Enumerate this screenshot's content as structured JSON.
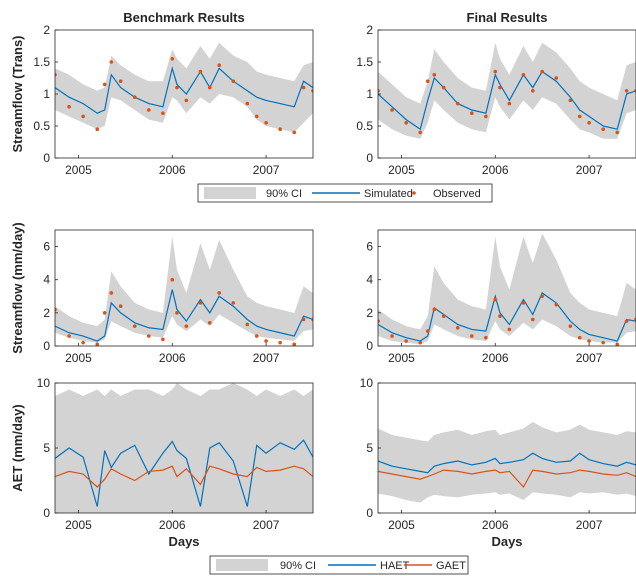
{
  "chart_data": [
    {
      "type": "line",
      "title": "Benchmark Results",
      "xlabel": "",
      "ylabel": "Streamflow (Trans)",
      "ylim": [
        0,
        2
      ],
      "yticks": [
        0,
        0.5,
        1,
        1.5,
        2
      ],
      "ytick_labels": [
        "0",
        "0.5",
        "1",
        "1.5",
        "2"
      ],
      "xlim": [
        2004.75,
        2007.5
      ],
      "xticks": [
        2005,
        2006,
        2007
      ],
      "xtick_labels": [
        "2005",
        "2006",
        "2007"
      ],
      "x": [
        2004.75,
        2004.9,
        2005.05,
        2005.2,
        2005.28,
        2005.35,
        2005.45,
        2005.6,
        2005.75,
        2005.9,
        2006.0,
        2006.05,
        2006.15,
        2006.3,
        2006.4,
        2006.5,
        2006.65,
        2006.8,
        2006.9,
        2007.0,
        2007.15,
        2007.3,
        2007.4,
        2007.5
      ],
      "series": [
        {
          "name": "90% CI",
          "lower": [
            0.75,
            0.65,
            0.55,
            0.45,
            0.5,
            0.95,
            0.9,
            0.75,
            0.6,
            0.55,
            0.95,
            0.9,
            0.7,
            0.95,
            0.85,
            1.0,
            0.95,
            0.8,
            0.6,
            0.5,
            0.45,
            0.4,
            0.55,
            0.7
          ],
          "upper": [
            1.4,
            1.3,
            1.15,
            1.05,
            1.1,
            1.6,
            1.45,
            1.3,
            1.2,
            1.2,
            1.7,
            1.55,
            1.4,
            1.75,
            1.55,
            1.8,
            1.6,
            1.5,
            1.35,
            1.3,
            1.25,
            1.2,
            1.45,
            1.5
          ]
        },
        {
          "name": "Simulated",
          "values": [
            1.1,
            0.95,
            0.85,
            0.7,
            0.75,
            1.3,
            1.1,
            0.95,
            0.85,
            0.8,
            1.4,
            1.15,
            1.0,
            1.35,
            1.1,
            1.4,
            1.2,
            1.05,
            0.95,
            0.9,
            0.85,
            0.8,
            1.2,
            1.1
          ]
        },
        {
          "name": "Observed",
          "values": [
            1.3,
            0.8,
            0.65,
            0.45,
            1.15,
            1.5,
            1.2,
            0.95,
            0.75,
            0.7,
            1.55,
            1.1,
            0.9,
            1.35,
            1.1,
            1.45,
            1.2,
            0.85,
            0.65,
            0.55,
            0.45,
            0.4,
            1.1,
            1.05
          ]
        }
      ]
    },
    {
      "type": "line",
      "title": "Final Results",
      "xlabel": "",
      "ylabel": "",
      "ylim": [
        0,
        2
      ],
      "yticks": [
        0,
        0.5,
        1,
        1.5,
        2
      ],
      "ytick_labels": [
        "0",
        "0.5",
        "1",
        "1.5",
        "2"
      ],
      "xlim": [
        2004.75,
        2007.5
      ],
      "xticks": [
        2005,
        2006,
        2007
      ],
      "xtick_labels": [
        "2005",
        "2006",
        "2007"
      ],
      "x": [
        2004.75,
        2004.9,
        2005.05,
        2005.2,
        2005.28,
        2005.35,
        2005.45,
        2005.6,
        2005.75,
        2005.9,
        2006.0,
        2006.05,
        2006.15,
        2006.3,
        2006.4,
        2006.5,
        2006.65,
        2006.8,
        2006.9,
        2007.0,
        2007.15,
        2007.3,
        2007.4,
        2007.5
      ],
      "series": [
        {
          "name": "90% CI",
          "lower": [
            0.6,
            0.45,
            0.35,
            0.3,
            0.55,
            0.9,
            0.75,
            0.55,
            0.45,
            0.4,
            0.95,
            0.8,
            0.6,
            0.9,
            0.75,
            0.95,
            0.85,
            0.6,
            0.45,
            0.4,
            0.3,
            0.3,
            0.7,
            0.75
          ],
          "upper": [
            1.35,
            1.15,
            0.95,
            0.85,
            1.2,
            1.7,
            1.5,
            1.25,
            1.1,
            1.05,
            1.8,
            1.55,
            1.3,
            1.75,
            1.5,
            1.8,
            1.65,
            1.4,
            1.2,
            1.1,
            1.0,
            0.9,
            1.45,
            1.5
          ]
        },
        {
          "name": "Simulated",
          "values": [
            1.0,
            0.8,
            0.6,
            0.45,
            0.9,
            1.25,
            1.1,
            0.85,
            0.75,
            0.7,
            1.3,
            1.15,
            0.9,
            1.3,
            1.1,
            1.35,
            1.2,
            0.95,
            0.75,
            0.65,
            0.5,
            0.45,
            1.0,
            1.05
          ]
        },
        {
          "name": "Observed",
          "values": [
            1.05,
            0.75,
            0.55,
            0.4,
            1.2,
            1.3,
            1.1,
            0.85,
            0.7,
            0.65,
            1.35,
            1.1,
            0.85,
            1.3,
            1.05,
            1.35,
            1.25,
            0.9,
            0.65,
            0.55,
            0.45,
            0.4,
            1.05,
            1.05
          ]
        }
      ]
    },
    {
      "type": "line",
      "title": "",
      "xlabel": "",
      "ylabel": "Streamflow (mm/day)",
      "ylim": [
        0,
        7
      ],
      "yticks": [
        0,
        2,
        4,
        6
      ],
      "ytick_labels": [
        "0",
        "2",
        "4",
        "6"
      ],
      "xlim": [
        2004.75,
        2007.5
      ],
      "xticks": [
        2005,
        2006,
        2007
      ],
      "xtick_labels": [
        "2005",
        "2006",
        "2007"
      ],
      "x": [
        2004.75,
        2004.9,
        2005.05,
        2005.2,
        2005.28,
        2005.35,
        2005.45,
        2005.6,
        2005.75,
        2005.9,
        2006.0,
        2006.05,
        2006.15,
        2006.3,
        2006.4,
        2006.5,
        2006.65,
        2006.8,
        2006.9,
        2007.0,
        2007.15,
        2007.3,
        2007.4,
        2007.5
      ],
      "series": [
        {
          "name": "90% CI",
          "lower": [
            0.8,
            0.5,
            0.3,
            0.2,
            0.4,
            1.5,
            1.2,
            0.8,
            0.6,
            0.5,
            1.8,
            1.3,
            0.9,
            1.6,
            1.2,
            1.9,
            1.4,
            0.9,
            0.6,
            0.5,
            0.4,
            0.3,
            0.9,
            1.0
          ],
          "upper": [
            2.4,
            1.8,
            1.4,
            1.2,
            1.6,
            4.5,
            3.6,
            2.6,
            2.2,
            2.0,
            6.6,
            4.6,
            3.2,
            6.2,
            4.6,
            6.4,
            4.6,
            3.0,
            2.6,
            2.4,
            2.2,
            2.0,
            3.6,
            3.2
          ]
        },
        {
          "name": "Simulated",
          "values": [
            1.2,
            0.8,
            0.6,
            0.3,
            0.6,
            2.6,
            2.0,
            1.4,
            1.1,
            1.0,
            3.4,
            2.2,
            1.5,
            2.8,
            2.0,
            3.0,
            2.4,
            1.6,
            1.2,
            1.0,
            0.8,
            0.6,
            1.8,
            1.6
          ]
        },
        {
          "name": "Observed",
          "values": [
            2.2,
            0.6,
            0.2,
            0.1,
            2.0,
            3.2,
            2.4,
            1.2,
            0.6,
            0.4,
            4.0,
            2.0,
            1.2,
            2.6,
            1.4,
            3.2,
            2.6,
            1.3,
            0.6,
            0.3,
            0.2,
            0.1,
            1.6,
            1.6
          ]
        }
      ]
    },
    {
      "type": "line",
      "title": "",
      "xlabel": "",
      "ylabel": "",
      "ylim": [
        0,
        7
      ],
      "yticks": [
        0,
        2,
        4,
        6
      ],
      "ytick_labels": [
        "0",
        "2",
        "4",
        "6"
      ],
      "xlim": [
        2004.75,
        2007.5
      ],
      "xticks": [
        2005,
        2006,
        2007
      ],
      "xtick_labels": [
        "2005",
        "2006",
        "2007"
      ],
      "x": [
        2004.75,
        2004.9,
        2005.05,
        2005.2,
        2005.28,
        2005.35,
        2005.45,
        2005.6,
        2005.75,
        2005.9,
        2006.0,
        2006.05,
        2006.15,
        2006.3,
        2006.4,
        2006.5,
        2006.65,
        2006.8,
        2006.9,
        2007.0,
        2007.15,
        2007.3,
        2007.4,
        2007.5
      ],
      "series": [
        {
          "name": "90% CI",
          "lower": [
            0.6,
            0.3,
            0.2,
            0.1,
            0.3,
            1.3,
            1.0,
            0.6,
            0.4,
            0.3,
            1.5,
            1.0,
            0.6,
            1.4,
            1.0,
            1.6,
            1.2,
            0.6,
            0.4,
            0.3,
            0.2,
            0.2,
            0.8,
            0.9
          ],
          "upper": [
            2.2,
            1.6,
            1.2,
            1.0,
            1.8,
            4.8,
            3.8,
            2.8,
            2.4,
            2.2,
            6.6,
            4.8,
            3.4,
            6.6,
            5.0,
            6.8,
            5.2,
            3.2,
            2.6,
            2.2,
            2.0,
            1.8,
            3.8,
            3.4
          ]
        },
        {
          "name": "Simulated",
          "values": [
            1.3,
            0.8,
            0.5,
            0.3,
            0.6,
            2.3,
            1.9,
            1.3,
            1.0,
            0.9,
            3.0,
            2.0,
            1.3,
            2.8,
            1.9,
            3.2,
            2.6,
            1.5,
            1.0,
            0.7,
            0.5,
            0.3,
            1.6,
            1.5
          ]
        },
        {
          "name": "Observed",
          "values": [
            1.5,
            0.6,
            0.3,
            0.2,
            0.9,
            2.2,
            1.8,
            1.1,
            0.6,
            0.5,
            2.8,
            1.8,
            1.0,
            2.6,
            1.6,
            3.0,
            2.5,
            1.2,
            0.5,
            0.3,
            0.2,
            0.1,
            1.5,
            1.6
          ]
        }
      ]
    },
    {
      "type": "line",
      "title": "",
      "xlabel": "Days",
      "ylabel": "AET (mm/day)",
      "ylim": [
        0,
        10
      ],
      "yticks": [
        0,
        5,
        10
      ],
      "ytick_labels": [
        "0",
        "5",
        "10"
      ],
      "xlim": [
        2004.75,
        2007.5
      ],
      "xticks": [
        2005,
        2006,
        2007
      ],
      "xtick_labels": [
        "2005",
        "2006",
        "2007"
      ],
      "x": [
        2004.75,
        2004.9,
        2005.05,
        2005.2,
        2005.28,
        2005.35,
        2005.45,
        2005.6,
        2005.75,
        2005.9,
        2006.0,
        2006.05,
        2006.15,
        2006.3,
        2006.4,
        2006.5,
        2006.65,
        2006.8,
        2006.9,
        2007.0,
        2007.15,
        2007.3,
        2007.4,
        2007.5
      ],
      "series": [
        {
          "name": "90% CI",
          "lower": [
            0,
            0,
            0,
            0,
            0,
            0,
            0,
            0,
            0,
            0,
            0,
            0,
            0,
            0,
            0,
            0,
            0,
            0,
            0,
            0,
            0,
            0,
            0,
            0
          ],
          "upper": [
            9.0,
            9.5,
            9.0,
            9.5,
            9.0,
            9.5,
            9.0,
            9.5,
            9.5,
            9.0,
            9.5,
            10.0,
            9.5,
            9.0,
            9.5,
            9.5,
            10.0,
            9.5,
            9.0,
            9.5,
            9.0,
            9.5,
            9.0,
            9.5
          ]
        },
        {
          "name": "HAET",
          "values": [
            4.2,
            5.0,
            4.3,
            0.5,
            4.8,
            3.5,
            4.6,
            5.2,
            3.0,
            4.6,
            5.5,
            4.8,
            4.2,
            0.5,
            5.0,
            5.4,
            4.0,
            0.5,
            5.2,
            4.6,
            5.4,
            4.9,
            5.6,
            4.3
          ]
        },
        {
          "name": "GAET",
          "values": [
            2.8,
            3.2,
            3.0,
            2.0,
            2.6,
            3.4,
            3.0,
            2.5,
            3.2,
            3.3,
            3.6,
            2.8,
            3.4,
            2.2,
            3.6,
            3.4,
            3.0,
            2.8,
            3.5,
            3.2,
            3.3,
            3.6,
            3.4,
            2.8
          ]
        }
      ]
    },
    {
      "type": "line",
      "title": "",
      "xlabel": "Days",
      "ylabel": "",
      "ylim": [
        0,
        10
      ],
      "yticks": [
        0,
        5,
        10
      ],
      "ytick_labels": [
        "0",
        "5",
        "10"
      ],
      "xlim": [
        2004.75,
        2007.5
      ],
      "xticks": [
        2005,
        2006,
        2007
      ],
      "xtick_labels": [
        "2005",
        "2006",
        "2007"
      ],
      "x": [
        2004.75,
        2004.9,
        2005.05,
        2005.2,
        2005.28,
        2005.35,
        2005.45,
        2005.6,
        2005.75,
        2005.9,
        2006.0,
        2006.05,
        2006.15,
        2006.3,
        2006.4,
        2006.5,
        2006.65,
        2006.8,
        2006.9,
        2007.0,
        2007.15,
        2007.3,
        2007.4,
        2007.5
      ],
      "series": [
        {
          "name": "90% CI",
          "lower": [
            1.5,
            1.3,
            1.0,
            0.8,
            1.2,
            1.4,
            1.3,
            1.2,
            1.4,
            1.5,
            1.6,
            1.4,
            1.5,
            1.0,
            1.6,
            1.5,
            1.4,
            1.2,
            1.6,
            1.5,
            1.6,
            1.4,
            1.5,
            1.3
          ],
          "upper": [
            6.5,
            6.0,
            5.8,
            5.6,
            5.5,
            6.0,
            6.2,
            6.4,
            6.0,
            6.3,
            6.4,
            6.0,
            6.2,
            6.5,
            7.0,
            6.6,
            6.2,
            6.4,
            6.8,
            6.4,
            6.2,
            6.0,
            6.3,
            6.2
          ]
        },
        {
          "name": "HAET",
          "values": [
            4.0,
            3.6,
            3.4,
            3.2,
            3.1,
            3.6,
            3.8,
            4.0,
            3.7,
            3.9,
            4.2,
            3.8,
            3.9,
            4.1,
            4.6,
            4.2,
            3.9,
            4.0,
            4.6,
            4.1,
            3.8,
            3.6,
            3.9,
            3.7
          ]
        },
        {
          "name": "GAET",
          "values": [
            3.2,
            3.0,
            2.8,
            2.6,
            2.8,
            3.0,
            3.3,
            3.2,
            3.0,
            3.2,
            3.3,
            3.1,
            3.2,
            2.0,
            3.3,
            3.2,
            3.0,
            3.1,
            3.3,
            3.2,
            3.0,
            2.9,
            3.1,
            2.8
          ]
        }
      ]
    }
  ],
  "legends": [
    {
      "items": [
        "90% CI",
        "Simulated",
        "Observed"
      ]
    },
    {
      "items": [
        "90% CI",
        "HAET",
        "GAET"
      ]
    }
  ],
  "colors": {
    "ci": "#d3d3d3",
    "blue": "#0072bd",
    "orange": "#d95319",
    "axis": "#262626"
  }
}
